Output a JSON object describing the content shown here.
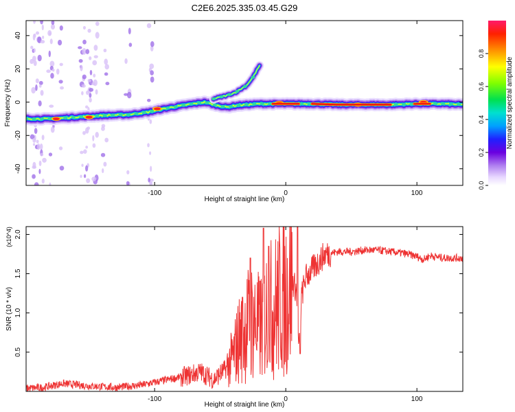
{
  "chart_data": [
    {
      "type": "heatmap",
      "title": "C2E6.2025.335.03.45.G29",
      "xlabel": "Height of straight line (km)",
      "ylabel": "Frequency (Hz)",
      "xlim": [
        -198,
        135
      ],
      "ylim": [
        -50,
        49
      ],
      "xticks": [
        -100,
        0,
        100
      ],
      "xtick_labels": [
        "-100",
        "0",
        "100"
      ],
      "yticks": [
        -40,
        -20,
        0,
        20,
        40
      ],
      "ytick_labels": [
        "-40",
        "-20",
        "0",
        "20",
        "40"
      ],
      "colorbar": {
        "label": "Normalized spectral amplitude",
        "range": [
          0,
          1
        ],
        "ticks": [
          0,
          0.2,
          0.4,
          0.6,
          0.8
        ],
        "tick_labels": [
          "0.0",
          "0.2",
          "0.4",
          "0.6",
          "0.8"
        ]
      },
      "traces": [
        {
          "name": "main-trace",
          "x": [
            -198,
            -180,
            -160,
            -140,
            -120,
            -105,
            -90,
            -75,
            -62,
            -52,
            -45,
            -38,
            -30,
            -20,
            -10,
            0,
            20,
            40,
            60,
            80,
            100,
            120,
            135
          ],
          "y": [
            -10,
            -10,
            -9,
            -8,
            -7.5,
            -6,
            -3.5,
            -1.5,
            0,
            -2,
            -3,
            -2,
            -1.5,
            -1,
            -1,
            -1,
            -1,
            -1.5,
            -1.5,
            -1.5,
            -1,
            -1,
            -1.5
          ]
        },
        {
          "name": "upper-branch",
          "x": [
            -55,
            -45,
            -38,
            -30,
            -25,
            -20
          ],
          "y": [
            2,
            4,
            6,
            10,
            15,
            22
          ]
        }
      ],
      "hotspots": [
        {
          "x": -175,
          "y": -10
        },
        {
          "x": -150,
          "y": -9
        },
        {
          "x": -98,
          "y": -4
        },
        {
          "x": -5,
          "y": -0.5
        },
        {
          "x": 55,
          "y": -1.5
        },
        {
          "x": 105,
          "y": 0
        }
      ]
    },
    {
      "type": "line",
      "xlabel": "Height of straight line (km)",
      "ylabel": "SNR (10 * v/v)",
      "y_multiplier": "(x10^4)",
      "xlim": [
        -198,
        135
      ],
      "ylim": [
        0,
        2.1
      ],
      "xticks": [
        -100,
        0,
        100
      ],
      "xtick_labels": [
        "-100",
        "0",
        "100"
      ],
      "yticks": [
        0.5,
        1.0,
        1.5,
        2.0
      ],
      "ytick_labels": [
        "0.5",
        "1.0",
        "1.5",
        "2.0"
      ],
      "color": "#ee3333",
      "series": [
        {
          "name": "SNR",
          "x": [
            -198,
            -185,
            -170,
            -150,
            -130,
            -110,
            -90,
            -75,
            -65,
            -55,
            -45,
            -40,
            -35,
            -30,
            -25,
            -20,
            -15,
            -10,
            -5,
            0,
            5,
            8,
            10,
            12,
            15,
            20,
            25,
            30,
            40,
            50,
            60,
            70,
            80,
            90,
            100,
            105,
            110,
            120,
            135
          ],
          "y": [
            0.04,
            0.05,
            0.1,
            0.07,
            0.05,
            0.08,
            0.15,
            0.2,
            0.25,
            0.15,
            0.3,
            0.45,
            0.7,
            0.85,
            0.9,
            0.8,
            1.0,
            1.05,
            1.15,
            1.25,
            1.4,
            1.3,
            0.5,
            1.2,
            1.45,
            1.55,
            1.65,
            1.75,
            1.78,
            1.78,
            1.8,
            1.8,
            1.78,
            1.76,
            1.72,
            1.68,
            1.73,
            1.7,
            1.7
          ]
        }
      ],
      "spikes": [
        {
          "x": -17,
          "y": 2.08
        },
        {
          "x": -13,
          "y": 1.85
        },
        {
          "x": -27,
          "y": 1.7
        },
        {
          "x": 9,
          "y": 2.12
        },
        {
          "x": -33,
          "y": 1.2
        },
        {
          "x": 11,
          "y": 0.48
        }
      ]
    }
  ]
}
